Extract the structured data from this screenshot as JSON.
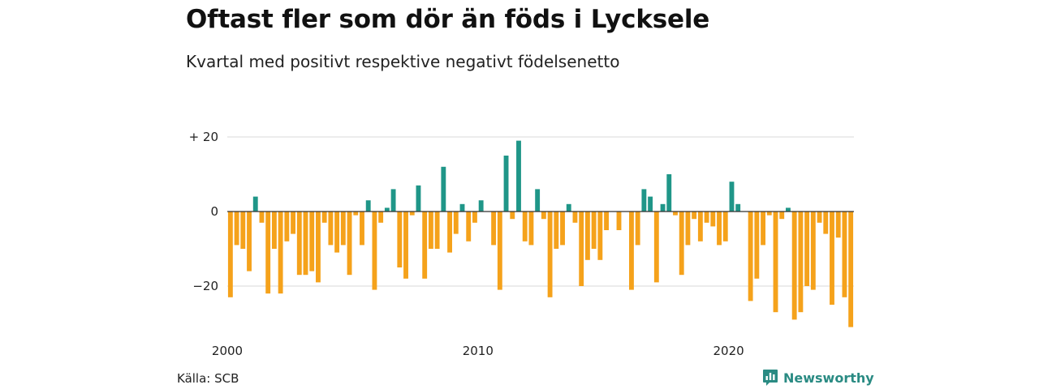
{
  "title": "Oftast fler som dör än föds i Lycksele",
  "subtitle": "Kvartal med positivt respektive negativt födelsenetto",
  "source": "Källa: SCB",
  "brand": {
    "name": "Newsworthy",
    "icon": "newsworthy-logo-icon"
  },
  "colors": {
    "positive": "#1f9688",
    "negative": "#f5a21b",
    "grid": "#d9d9d9",
    "zero_line": "#333333"
  },
  "chart_data": {
    "type": "bar",
    "title": "Oftast fler som dör än föds i Lycksele",
    "subtitle": "Kvartal med positivt respektive negativt födelsenetto",
    "xlabel": "",
    "ylabel": "",
    "ylim": [
      -32,
      22
    ],
    "y_ticks": [
      {
        "value": 20,
        "label": "+ 20"
      },
      {
        "value": 0,
        "label": "0"
      },
      {
        "value": -20,
        "label": "−20"
      }
    ],
    "x_ticks": [
      {
        "value": 2000,
        "label": "2000"
      },
      {
        "value": 2010,
        "label": "2010"
      },
      {
        "value": 2020,
        "label": "2020"
      }
    ],
    "x_start": 2000,
    "period": "quarter",
    "grid": true,
    "legend": "none",
    "values": [
      -23,
      -9,
      -10,
      -16,
      4,
      -3,
      -22,
      -10,
      -22,
      -8,
      -6,
      -17,
      -17,
      -16,
      -19,
      -3,
      -9,
      -11,
      -9,
      -17,
      -1,
      -9,
      3,
      -21,
      -3,
      1,
      6,
      -15,
      -18,
      -1,
      7,
      -18,
      -10,
      -10,
      12,
      -11,
      -6,
      2,
      -8,
      -3,
      3,
      0,
      -9,
      -21,
      15,
      -2,
      19,
      -8,
      -9,
      6,
      -2,
      -23,
      -10,
      -9,
      2,
      -3,
      -20,
      -13,
      -10,
      -13,
      -5,
      0,
      -5,
      0,
      -21,
      -9,
      6,
      4,
      -19,
      2,
      10,
      -1,
      -17,
      -9,
      -2,
      -8,
      -3,
      -4,
      -9,
      -8,
      8,
      2,
      0,
      -24,
      -18,
      -9,
      -1,
      -27,
      -2,
      1,
      -29,
      -27,
      -20,
      -21,
      -3,
      -6,
      -25,
      -7,
      -23,
      -31
    ]
  }
}
